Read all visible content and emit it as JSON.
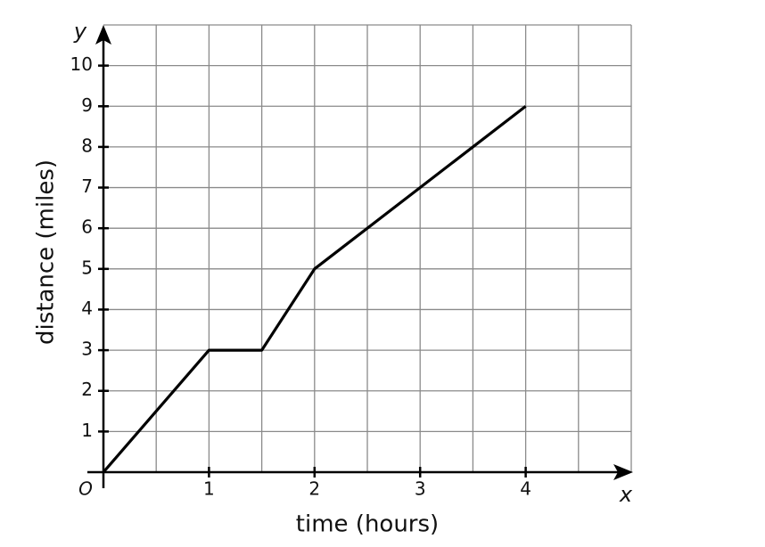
{
  "chart_data": {
    "type": "line",
    "x_label": "time (hours)",
    "y_label": "distance (miles)",
    "x_axis_letter": "x",
    "y_axis_letter": "y",
    "origin_label": "O",
    "x": [
      0,
      1,
      1.5,
      2,
      4
    ],
    "series": [
      {
        "color": "#000000",
        "values": [
          0,
          3,
          3,
          5,
          9
        ]
      }
    ],
    "xlim": [
      0,
      5
    ],
    "ylim": [
      0,
      11
    ],
    "xticks": [
      1,
      2,
      3,
      4
    ],
    "yticks": [
      1,
      2,
      3,
      4,
      5,
      6,
      7,
      8,
      9,
      10
    ],
    "x_gridlines": [
      0.5,
      1,
      1.5,
      2,
      2.5,
      3,
      3.5,
      4,
      4.5,
      5
    ],
    "y_gridlines": [
      1,
      2,
      3,
      4,
      5,
      6,
      7,
      8,
      9,
      10,
      11
    ],
    "grid": true
  }
}
